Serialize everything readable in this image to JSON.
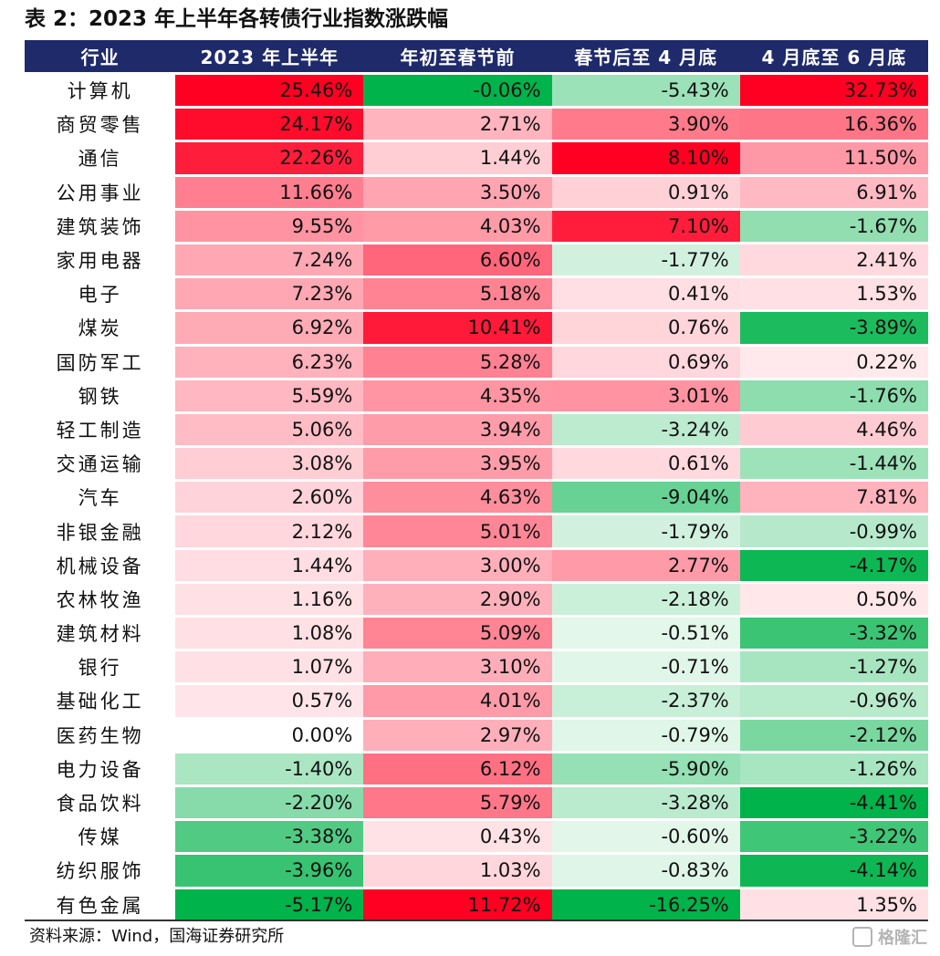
{
  "title": "表 2：2023 年上半年各转债行业指数涨跌幅",
  "source": "资料来源：Wind，国海证券研究所",
  "watermark": "格隆汇",
  "colors": {
    "header_bg": "#1f2a6b",
    "positive": "#ff0000",
    "negative": "#00b050",
    "neutral": "#ffffff"
  },
  "chart_data": {
    "type": "table",
    "columns": [
      "行业",
      "2023 年上半年",
      "年初至春节前",
      "春节后至 4 月底",
      "4 月底至 6 月底"
    ],
    "rows": [
      {
        "name": "计算机",
        "values": [
          25.46,
          -0.06,
          -5.43,
          32.73
        ]
      },
      {
        "name": "商贸零售",
        "values": [
          24.17,
          2.71,
          3.9,
          16.36
        ]
      },
      {
        "name": "通信",
        "values": [
          22.26,
          1.44,
          8.1,
          11.5
        ]
      },
      {
        "name": "公用事业",
        "values": [
          11.66,
          3.5,
          0.91,
          6.91
        ]
      },
      {
        "name": "建筑装饰",
        "values": [
          9.55,
          4.03,
          7.1,
          -1.67
        ]
      },
      {
        "name": "家用电器",
        "values": [
          7.24,
          6.6,
          -1.77,
          2.41
        ]
      },
      {
        "name": "电子",
        "values": [
          7.23,
          5.18,
          0.41,
          1.53
        ]
      },
      {
        "name": "煤炭",
        "values": [
          6.92,
          10.41,
          0.76,
          -3.89
        ]
      },
      {
        "name": "国防军工",
        "values": [
          6.23,
          5.28,
          0.69,
          0.22
        ]
      },
      {
        "name": "钢铁",
        "values": [
          5.59,
          4.35,
          3.01,
          -1.76
        ]
      },
      {
        "name": "轻工制造",
        "values": [
          5.06,
          3.94,
          -3.24,
          4.46
        ]
      },
      {
        "name": "交通运输",
        "values": [
          3.08,
          3.95,
          0.61,
          -1.44
        ]
      },
      {
        "name": "汽车",
        "values": [
          2.6,
          4.63,
          -9.04,
          7.81
        ]
      },
      {
        "name": "非银金融",
        "values": [
          2.12,
          5.01,
          -1.79,
          -0.99
        ]
      },
      {
        "name": "机械设备",
        "values": [
          1.44,
          3.0,
          2.77,
          -4.17
        ]
      },
      {
        "name": "农林牧渔",
        "values": [
          1.16,
          2.9,
          -2.18,
          0.5
        ]
      },
      {
        "name": "建筑材料",
        "values": [
          1.08,
          5.09,
          -0.51,
          -3.32
        ]
      },
      {
        "name": "银行",
        "values": [
          1.07,
          3.1,
          -0.71,
          -1.27
        ]
      },
      {
        "name": "基础化工",
        "values": [
          0.57,
          4.01,
          -2.37,
          -0.96
        ]
      },
      {
        "name": "医药生物",
        "values": [
          0.0,
          2.97,
          -0.79,
          -2.12
        ]
      },
      {
        "name": "电力设备",
        "values": [
          -1.4,
          6.12,
          -5.9,
          -1.26
        ]
      },
      {
        "name": "食品饮料",
        "values": [
          -2.2,
          5.79,
          -3.28,
          -4.41
        ]
      },
      {
        "name": "传媒",
        "values": [
          -3.38,
          0.43,
          -0.6,
          -3.22
        ]
      },
      {
        "name": "纺织服饰",
        "values": [
          -3.96,
          1.03,
          -0.83,
          -4.14
        ]
      },
      {
        "name": "有色金属",
        "values": [
          -5.17,
          11.72,
          -16.25,
          1.35
        ]
      }
    ]
  }
}
